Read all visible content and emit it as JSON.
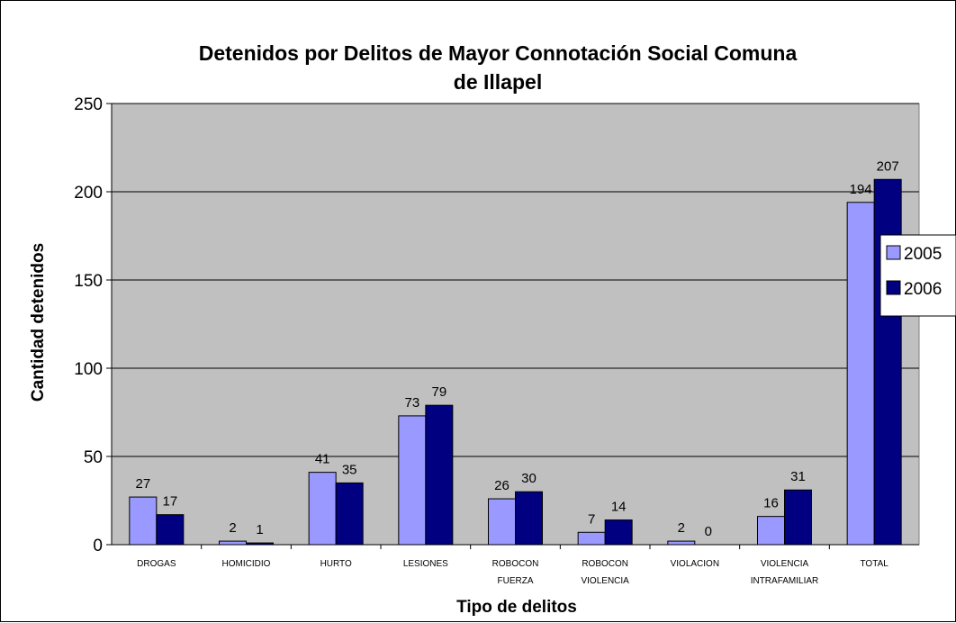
{
  "colors": {
    "plot_bg": "#c0c0c0",
    "series_2005": "#9999ff",
    "series_2006": "#000080",
    "grid": "#000000"
  },
  "chart_data": {
    "type": "bar",
    "title_line1": "Detenidos por Delitos de Mayor Connotación Social Comuna",
    "title_line2": "de Illapel",
    "xlabel": "Tipo de delitos",
    "ylabel": "Cantidad detenidos",
    "ylim": [
      0,
      250
    ],
    "yticks": [
      "0",
      "50",
      "100",
      "150",
      "200",
      "250"
    ],
    "grid": true,
    "legend_position": "right",
    "categories": [
      [
        "DROGAS"
      ],
      [
        "HOMICIDIO"
      ],
      [
        "HURTO"
      ],
      [
        "LESIONES"
      ],
      [
        "ROBOCON",
        "FUERZA"
      ],
      [
        "ROBOCON",
        "VIOLENCIA"
      ],
      [
        "VIOLACION"
      ],
      [
        "VIOLENCIA",
        "INTRAFAMILIAR"
      ],
      [
        "TOTAL"
      ]
    ],
    "series": [
      {
        "name": "2005",
        "values": [
          27,
          2,
          41,
          73,
          26,
          7,
          2,
          16,
          194
        ]
      },
      {
        "name": "2006",
        "values": [
          17,
          1,
          35,
          79,
          30,
          14,
          0,
          31,
          207
        ]
      }
    ]
  }
}
